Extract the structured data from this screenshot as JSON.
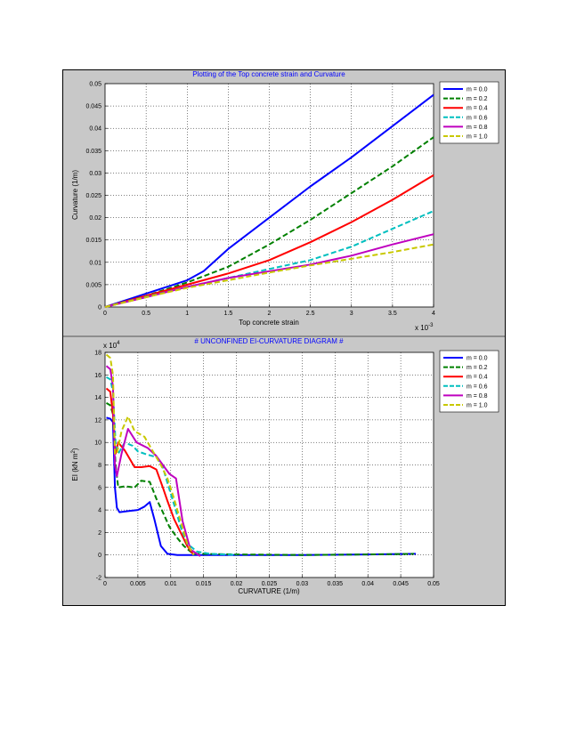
{
  "colors": {
    "figure_bg": "#c8c8c8",
    "axes_bg": "#ffffff",
    "title_color": "#0000ff",
    "separator": "#555555"
  },
  "chart_data": [
    {
      "type": "line",
      "title": "Plotting of the Top concrete strain and Curvature",
      "xlabel": "Top concrete strain",
      "ylabel": "Curvature (1/m)",
      "x_multiplier": "x 10",
      "x_multiplier_exp": "-3",
      "xlim": [
        0,
        4
      ],
      "ylim": [
        0,
        0.05
      ],
      "xticks": [
        "0",
        "0.5",
        "1",
        "1.5",
        "2",
        "2.5",
        "3",
        "3.5",
        "4"
      ],
      "yticks": [
        "0",
        "0.005",
        "0.01",
        "0.015",
        "0.02",
        "0.025",
        "0.03",
        "0.035",
        "0.04",
        "0.045",
        "0.05"
      ],
      "grid": true,
      "legend_position": "top-right",
      "series": [
        {
          "name": "m = 0.0",
          "color": "#0000ff",
          "dash": "solid",
          "x": [
            0,
            0.5,
            1,
            1.2,
            1.5,
            2,
            2.5,
            3,
            3.5,
            4
          ],
          "y": [
            0,
            0.003,
            0.006,
            0.008,
            0.013,
            0.02,
            0.027,
            0.0335,
            0.0405,
            0.0475
          ]
        },
        {
          "name": "m = 0.2",
          "color": "#008000",
          "dash": "dashed",
          "x": [
            0,
            0.5,
            1,
            1.5,
            2,
            2.5,
            3,
            3.5,
            4
          ],
          "y": [
            0,
            0.0025,
            0.0055,
            0.009,
            0.014,
            0.0195,
            0.0255,
            0.0315,
            0.038
          ]
        },
        {
          "name": "m = 0.4",
          "color": "#ff0000",
          "dash": "solid",
          "x": [
            0,
            0.5,
            1,
            1.5,
            2,
            2.5,
            3,
            3.5,
            4
          ],
          "y": [
            0,
            0.0025,
            0.005,
            0.0075,
            0.0105,
            0.0145,
            0.019,
            0.024,
            0.0295
          ]
        },
        {
          "name": "m = 0.6",
          "color": "#00bfbf",
          "dash": "dashed",
          "x": [
            0,
            0.5,
            1,
            1.5,
            2,
            2.5,
            3,
            3.5,
            4
          ],
          "y": [
            0,
            0.0023,
            0.0045,
            0.0065,
            0.0085,
            0.0105,
            0.0135,
            0.0175,
            0.0215
          ]
        },
        {
          "name": "m = 0.8",
          "color": "#bf00bf",
          "dash": "solid",
          "x": [
            0,
            0.5,
            1,
            1.5,
            2,
            2.5,
            3,
            3.5,
            4
          ],
          "y": [
            0,
            0.0022,
            0.0045,
            0.0065,
            0.008,
            0.0095,
            0.0115,
            0.014,
            0.0163
          ]
        },
        {
          "name": "m = 1.0",
          "color": "#c8c800",
          "dash": "dashed",
          "x": [
            0,
            0.5,
            1,
            1.5,
            2,
            2.5,
            3,
            3.5,
            4
          ],
          "y": [
            0,
            0.0022,
            0.0043,
            0.006,
            0.0077,
            0.0093,
            0.0108,
            0.0123,
            0.014
          ]
        }
      ]
    },
    {
      "type": "line",
      "title": "# UNCONFINED EI-CURVATURE DIAGRAM #",
      "xlabel": "CURVATURE (1/m)",
      "ylabel": "EI (kN m",
      "ylabel_sup": "2",
      "ylabel_end": ")",
      "y_multiplier": "x 10",
      "y_multiplier_exp": "4",
      "xlim": [
        0,
        0.05
      ],
      "ylim": [
        -2,
        18
      ],
      "xticks": [
        "0",
        "0.005",
        "0.01",
        "0.015",
        "0.02",
        "0.025",
        "0.03",
        "0.035",
        "0.04",
        "0.045",
        "0.05"
      ],
      "yticks": [
        "-2",
        "0",
        "2",
        "4",
        "6",
        "8",
        "10",
        "12",
        "14",
        "16",
        "18"
      ],
      "grid": true,
      "legend_position": "top-right",
      "series": [
        {
          "name": "m = 0.0",
          "color": "#0000ff",
          "dash": "solid",
          "x": [
            0.0002,
            0.0008,
            0.0012,
            0.0015,
            0.0018,
            0.0022,
            0.0035,
            0.005,
            0.006,
            0.0068,
            0.0075,
            0.0085,
            0.0095,
            0.011,
            0.013,
            0.02,
            0.03,
            0.04,
            0.0473
          ],
          "y": [
            12.2,
            12.1,
            11.8,
            6.0,
            4.2,
            3.8,
            3.9,
            4.0,
            4.3,
            4.7,
            3.2,
            0.8,
            0.1,
            0.0,
            0.0,
            0.0,
            0.0,
            0.05,
            0.1
          ]
        },
        {
          "name": "m = 0.2",
          "color": "#008000",
          "dash": "dashed",
          "x": [
            0.0002,
            0.0008,
            0.0012,
            0.0016,
            0.002,
            0.003,
            0.0045,
            0.0055,
            0.0068,
            0.0078,
            0.0088,
            0.0098,
            0.011,
            0.012,
            0.013,
            0.0135,
            0.02,
            0.03,
            0.04,
            0.047
          ],
          "y": [
            13.5,
            13.3,
            12.5,
            8.0,
            6.0,
            6.1,
            6.0,
            6.6,
            6.5,
            5.0,
            3.8,
            2.5,
            1.5,
            0.8,
            0.3,
            0.1,
            0.05,
            0.0,
            0.05,
            0.1
          ]
        },
        {
          "name": "m = 0.4",
          "color": "#ff0000",
          "dash": "solid",
          "x": [
            0.0002,
            0.0008,
            0.0012,
            0.0016,
            0.002,
            0.003,
            0.0045,
            0.0055,
            0.0068,
            0.0078,
            0.0088,
            0.0095,
            0.0105,
            0.0115,
            0.0125,
            0.0135
          ],
          "y": [
            14.8,
            14.5,
            12.5,
            9.0,
            10.0,
            9.3,
            7.8,
            7.8,
            7.9,
            7.6,
            6.0,
            4.8,
            3.2,
            2.0,
            0.8,
            0.0
          ]
        },
        {
          "name": "m = 0.6",
          "color": "#00bfbf",
          "dash": "dashed",
          "x": [
            0.0002,
            0.0008,
            0.0012,
            0.0016,
            0.002,
            0.003,
            0.0042,
            0.005,
            0.0065,
            0.0078,
            0.0088,
            0.0095,
            0.0105,
            0.0115,
            0.0125,
            0.014,
            0.016,
            0.02
          ],
          "y": [
            15.8,
            15.6,
            14.5,
            10.0,
            9.0,
            10.0,
            9.7,
            9.2,
            8.9,
            8.7,
            7.8,
            6.4,
            4.5,
            2.5,
            1.0,
            0.3,
            0.1,
            0.0
          ]
        },
        {
          "name": "m = 0.8",
          "color": "#bf00bf",
          "dash": "solid",
          "x": [
            0.0002,
            0.0008,
            0.0012,
            0.0015,
            0.0018,
            0.0025,
            0.0035,
            0.0048,
            0.0065,
            0.0078,
            0.0088,
            0.0098,
            0.0108,
            0.0118,
            0.013,
            0.0145
          ],
          "y": [
            16.8,
            16.5,
            15.0,
            8.0,
            7.0,
            9.0,
            11.2,
            10.0,
            9.5,
            8.8,
            8.0,
            7.2,
            6.8,
            3.0,
            0.5,
            -0.1
          ]
        },
        {
          "name": "m = 1.0",
          "color": "#c8c800",
          "dash": "dashed",
          "x": [
            0.0002,
            0.0008,
            0.0012,
            0.0015,
            0.0018,
            0.0025,
            0.0035,
            0.0045,
            0.006,
            0.0072,
            0.0085,
            0.0095,
            0.0105,
            0.0115,
            0.0125,
            0.0135
          ],
          "y": [
            17.8,
            17.5,
            16.0,
            9.0,
            9.0,
            11.0,
            12.3,
            11.0,
            10.5,
            9.3,
            8.0,
            6.8,
            5.0,
            3.0,
            1.0,
            0.0
          ]
        }
      ]
    }
  ]
}
